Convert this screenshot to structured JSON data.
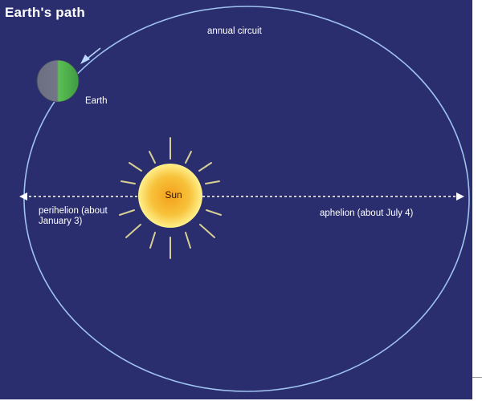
{
  "title": "Earth's path",
  "labels": {
    "annual_circuit": "annual circuit",
    "earth": "Earth",
    "sun": "Sun",
    "perihelion": "perihelion (about January 3)",
    "aphelion": "aphelion (about July 4)"
  },
  "colors": {
    "background": "#2a2e6e",
    "orbit": "#9fc2f0",
    "sun_core": "#f5a81f",
    "sun_edge": "#fff089",
    "earth_day": "#5bbf53",
    "earth_night": "#6b6f80",
    "rays": "#d8cf94"
  },
  "icons": {
    "sun": "sun-icon",
    "earth": "earth-icon",
    "direction": "arrow-icon"
  }
}
